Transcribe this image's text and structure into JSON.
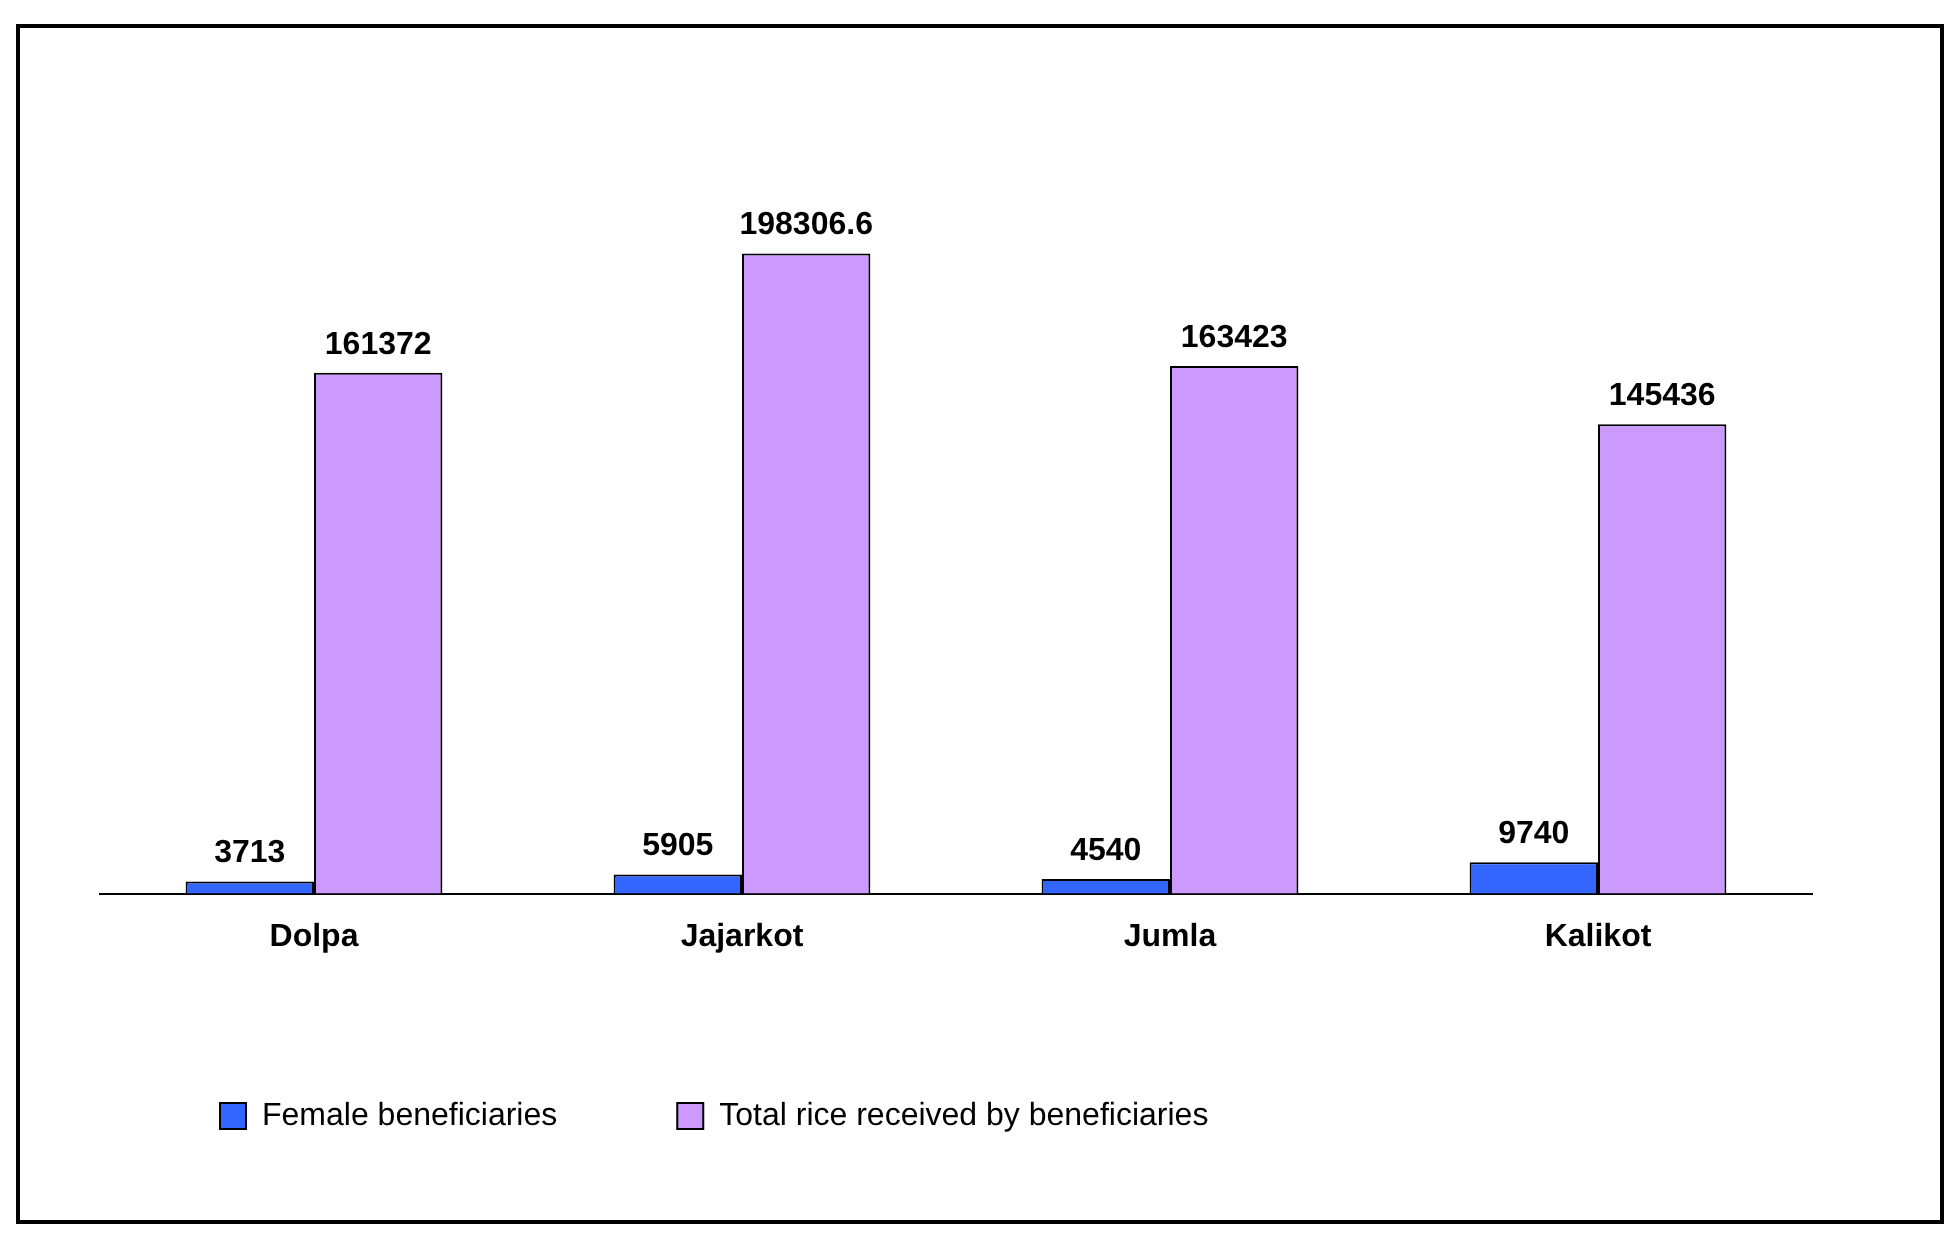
{
  "chart_data": {
    "type": "bar",
    "categories": [
      "Dolpa",
      "Jajarkot",
      "Jumla",
      "Kalikot"
    ],
    "series": [
      {
        "name": "Female beneficiaries",
        "color": "#3366ff",
        "values": [
          3713,
          5905,
          4540,
          9740
        ]
      },
      {
        "name": "Total rice received by beneficiaries",
        "color": "#cc99ff",
        "values": [
          161372,
          198306.6,
          163423,
          145436
        ]
      }
    ],
    "data_labels": true,
    "grid": false,
    "legend": "bottom"
  }
}
